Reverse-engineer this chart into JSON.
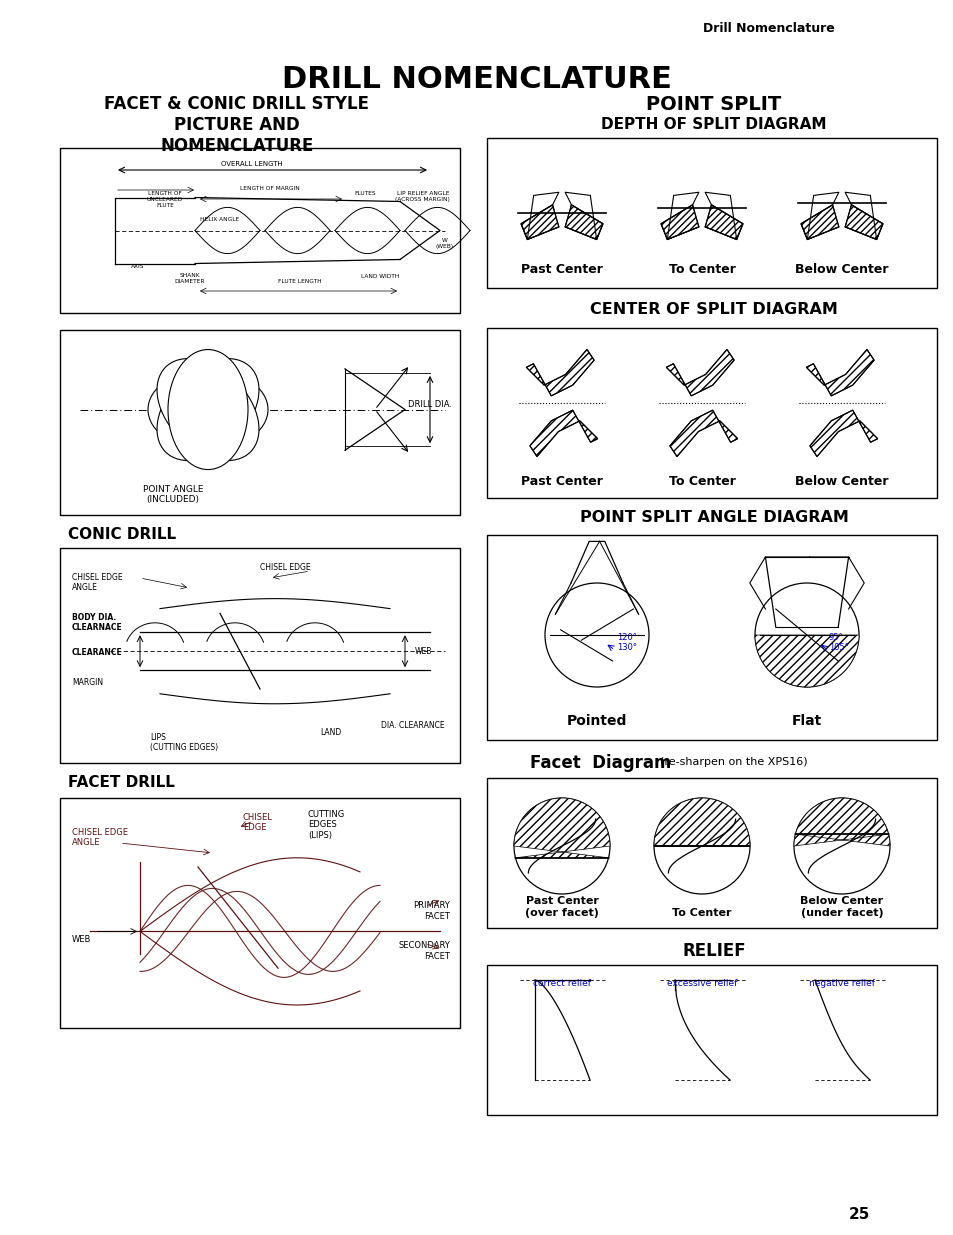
{
  "page_title": "DRILL NOMENCLATURE",
  "header_right": "Drill Nomenclature",
  "page_number": "25",
  "bg": "#ffffff",
  "left_col_title": "FACET & CONIC DRILL STYLE\nPICTURE AND\nNOMENCLATURE",
  "right_col_title_1": "POINT SPLIT",
  "right_col_subtitle_1": "DEPTH OF SPLIT DIAGRAM",
  "depth_labels": [
    "Past Center",
    "To Center",
    "Below Center"
  ],
  "right_col_title_2": "CENTER OF SPLIT DIAGRAM",
  "center_labels": [
    "Past Center",
    "To Center",
    "Below Center"
  ],
  "right_col_title_3": "POINT SPLIT ANGLE DIAGRAM",
  "angle_labels": [
    "Pointed",
    "Flat"
  ],
  "facet_diagram_title": "Facet  Diagram",
  "facet_diagram_subtitle": "(re-sharpen on the XPS16)",
  "facet_labels": [
    "Past Center\n(over facet)",
    "To Center",
    "Below Center\n(under facet)"
  ],
  "relief_title": "RELIEF",
  "relief_labels": [
    "correct relief",
    "excessive relief",
    "negative relief"
  ],
  "conic_drill_title": "CONIC DRILL",
  "facet_drill_title": "FACET DRILL",
  "dark_red": "#5c1010",
  "blue": "#0000cc"
}
